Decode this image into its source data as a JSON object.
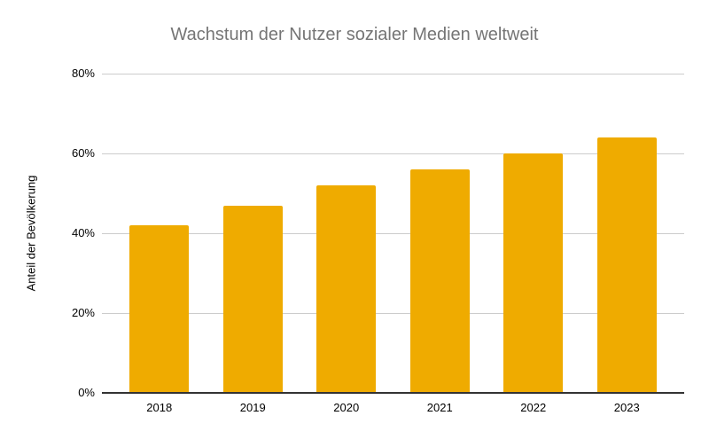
{
  "chart_data": {
    "type": "bar",
    "title": "Wachstum der Nutzer sozialer Medien weltweit",
    "categories": [
      "2018",
      "2019",
      "2020",
      "2021",
      "2022",
      "2023"
    ],
    "values": [
      42,
      47,
      52,
      56,
      60,
      64
    ],
    "xlabel": "",
    "ylabel": "Anteil der Bevölkerung",
    "ylim": [
      0,
      80
    ],
    "yticks": [
      0,
      20,
      40,
      60,
      80
    ],
    "ytick_labels": [
      "0%",
      "20%",
      "40%",
      "60%",
      "80%"
    ],
    "grid": true,
    "legend": "none",
    "colors": {
      "bar": "#EFAB00",
      "title": "#757575",
      "axis_text": "#000000",
      "gridline": "#cccccc",
      "axis_line": "#333333",
      "background": "#ffffff"
    }
  }
}
